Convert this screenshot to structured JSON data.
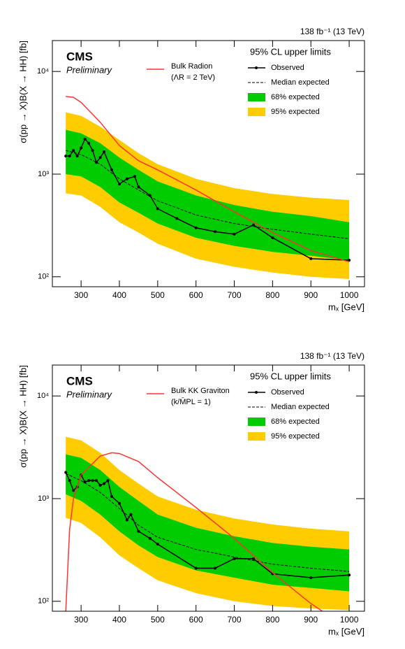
{
  "chart_data": [
    {
      "type": "line",
      "lumi_label": "138 fb⁻¹ (13 TeV)",
      "experiment": "CMS",
      "status": "Preliminary",
      "legend_title": "95% CL upper limits",
      "xlabel": "mₓ [GeV]",
      "ylabel": "σ(pp → X)B(X → HH) [fb]",
      "log_y": true,
      "xlim": [
        225,
        1040
      ],
      "ylim": [
        80,
        20000
      ],
      "xticks": [
        300,
        400,
        500,
        600,
        700,
        800,
        900,
        1000
      ],
      "yticks": [
        {
          "value": 100,
          "label": "10²"
        },
        {
          "value": 1000,
          "label": "10³"
        },
        {
          "value": 10000,
          "label": "10⁴"
        }
      ],
      "bands": [
        {
          "name": "95% expected",
          "color": "#ffcc00",
          "x": [
            260,
            300,
            350,
            400,
            450,
            500,
            600,
            700,
            800,
            900,
            1000
          ],
          "lower": [
            650,
            620,
            480,
            340,
            270,
            210,
            150,
            125,
            110,
            100,
            95
          ],
          "upper": [
            4000,
            3700,
            2900,
            2150,
            1600,
            1250,
            900,
            730,
            640,
            590,
            560
          ]
        },
        {
          "name": "68% expected",
          "color": "#00cc00",
          "x": [
            260,
            300,
            350,
            400,
            450,
            500,
            600,
            700,
            800,
            900,
            1000
          ],
          "lower": [
            1000,
            950,
            750,
            530,
            420,
            330,
            240,
            200,
            175,
            160,
            145
          ],
          "upper": [
            2700,
            2500,
            2000,
            1450,
            1100,
            850,
            620,
            500,
            430,
            390,
            340
          ]
        }
      ],
      "median": {
        "name": "Median expected",
        "color": "#000000",
        "x": [
          260,
          300,
          350,
          400,
          450,
          500,
          600,
          700,
          800,
          900,
          1000
        ],
        "values": [
          1700,
          1550,
          1250,
          900,
          700,
          550,
          400,
          330,
          290,
          260,
          235
        ]
      },
      "observed": {
        "name": "Observed",
        "color": "#000000",
        "x": [
          260,
          270,
          280,
          290,
          300,
          310,
          320,
          330,
          340,
          350,
          360,
          380,
          400,
          420,
          440,
          450,
          480,
          500,
          550,
          600,
          650,
          700,
          750,
          800,
          900,
          1000
        ],
        "values": [
          1500,
          1500,
          1700,
          1500,
          1800,
          2200,
          2000,
          1700,
          1300,
          1450,
          1650,
          1100,
          800,
          900,
          950,
          750,
          620,
          460,
          370,
          300,
          275,
          260,
          320,
          240,
          150,
          145
        ]
      },
      "signal": {
        "name": "Bulk Radion",
        "parameter": "(ΛR = 2 TeV)",
        "color": "#ff3333",
        "x": [
          260,
          280,
          300,
          350,
          400,
          450,
          500,
          600,
          700,
          800,
          900,
          1000
        ],
        "values": [
          5700,
          5600,
          5000,
          3200,
          1900,
          1350,
          1100,
          700,
          430,
          270,
          180,
          140
        ]
      }
    },
    {
      "type": "line",
      "lumi_label": "138 fb⁻¹ (13 TeV)",
      "experiment": "CMS",
      "status": "Preliminary",
      "legend_title": "95% CL upper limits",
      "xlabel": "mₓ [GeV]",
      "ylabel": "σ(pp → X)B(X → HH) [fb]",
      "log_y": true,
      "xlim": [
        225,
        1040
      ],
      "ylim": [
        80,
        20000
      ],
      "xticks": [
        300,
        400,
        500,
        600,
        700,
        800,
        900,
        1000
      ],
      "yticks": [
        {
          "value": 100,
          "label": "10²"
        },
        {
          "value": 1000,
          "label": "10³"
        },
        {
          "value": 10000,
          "label": "10⁴"
        }
      ],
      "bands": [
        {
          "name": "95% expected",
          "color": "#ffcc00",
          "x": [
            260,
            300,
            350,
            400,
            450,
            500,
            600,
            700,
            800,
            900,
            1000
          ],
          "lower": [
            650,
            580,
            420,
            280,
            210,
            160,
            120,
            100,
            90,
            85,
            82
          ],
          "upper": [
            4000,
            3700,
            2800,
            1900,
            1400,
            1050,
            780,
            640,
            560,
            510,
            480
          ]
        },
        {
          "name": "68% expected",
          "color": "#00cc00",
          "x": [
            260,
            300,
            350,
            400,
            450,
            500,
            600,
            700,
            800,
            900,
            1000
          ],
          "lower": [
            1100,
            950,
            700,
            480,
            350,
            270,
            200,
            170,
            145,
            135,
            125
          ],
          "upper": [
            2700,
            2500,
            1900,
            1300,
            950,
            700,
            520,
            430,
            370,
            340,
            320
          ]
        }
      ],
      "median": {
        "name": "Median expected",
        "color": "#000000",
        "x": [
          260,
          300,
          350,
          400,
          450,
          500,
          600,
          700,
          800,
          900,
          1000
        ],
        "values": [
          1750,
          1500,
          1150,
          800,
          550,
          420,
          320,
          270,
          230,
          210,
          195
        ]
      },
      "observed": {
        "name": "Observed",
        "color": "#000000",
        "x": [
          260,
          270,
          280,
          290,
          300,
          310,
          320,
          330,
          340,
          350,
          360,
          370,
          380,
          400,
          420,
          430,
          450,
          480,
          500,
          600,
          650,
          700,
          750,
          800,
          900,
          1000
        ],
        "values": [
          1800,
          1500,
          1200,
          1300,
          1700,
          1450,
          1500,
          1500,
          1500,
          1350,
          1400,
          1500,
          1050,
          900,
          620,
          700,
          480,
          410,
          360,
          210,
          210,
          260,
          260,
          185,
          170,
          180
        ]
      },
      "signal": {
        "name": "Bulk KK Graviton",
        "parameter": "(k/M̄PL = 1)",
        "color": "#ff3333",
        "x": [
          260,
          270,
          280,
          300,
          350,
          380,
          400,
          450,
          500,
          600,
          700,
          800,
          900,
          930
        ],
        "values": [
          80,
          500,
          1000,
          1700,
          2600,
          2800,
          2750,
          2300,
          1600,
          820,
          410,
          190,
          95,
          80
        ]
      }
    }
  ]
}
